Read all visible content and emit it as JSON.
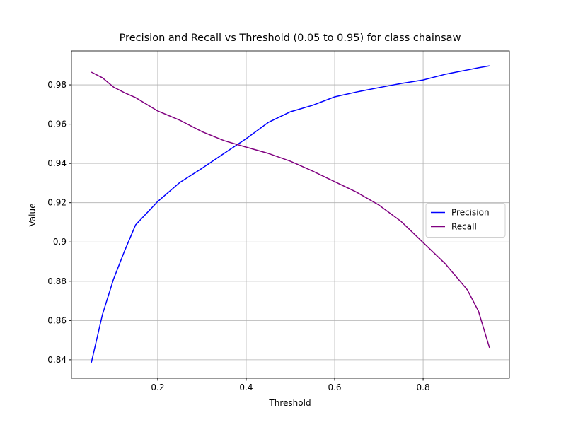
{
  "chart_data": {
    "type": "line",
    "title": "Precision and Recall vs Threshold (0.05 to 0.95) for class chainsaw",
    "x_label": "Threshold",
    "y_label": "Value",
    "x": [
      0.05,
      0.075,
      0.1,
      0.125,
      0.15,
      0.2,
      0.25,
      0.3,
      0.35,
      0.4,
      0.45,
      0.5,
      0.55,
      0.6,
      0.65,
      0.7,
      0.75,
      0.8,
      0.85,
      0.9,
      0.925,
      0.95
    ],
    "series": [
      {
        "name": "Precision",
        "color": "#0000ff",
        "values": [
          0.8386,
          0.863,
          0.881,
          0.8954,
          0.9087,
          0.9206,
          0.9303,
          0.9375,
          0.9451,
          0.9526,
          0.9609,
          0.9663,
          0.9696,
          0.9739,
          0.9764,
          0.9786,
          0.9807,
          0.9825,
          0.9854,
          0.9876,
          0.9887,
          0.9897
        ]
      },
      {
        "name": "Recall",
        "color": "#800080",
        "values": [
          0.9865,
          0.9836,
          0.9789,
          0.976,
          0.9735,
          0.9667,
          0.962,
          0.9562,
          0.9516,
          0.9483,
          0.9451,
          0.9411,
          0.9361,
          0.9307,
          0.9253,
          0.9188,
          0.9105,
          0.8997,
          0.8889,
          0.8756,
          0.8648,
          0.8461
        ]
      }
    ],
    "xlim": [
      0.005,
      0.995
    ],
    "ylim": [
      0.8306,
      0.9973
    ],
    "xticks": [
      0.2,
      0.4,
      0.6,
      0.8
    ],
    "yticks": [
      0.84,
      0.86,
      0.88,
      0.9,
      0.92,
      0.94,
      0.96,
      0.98
    ],
    "grid": true,
    "legend": "right"
  }
}
